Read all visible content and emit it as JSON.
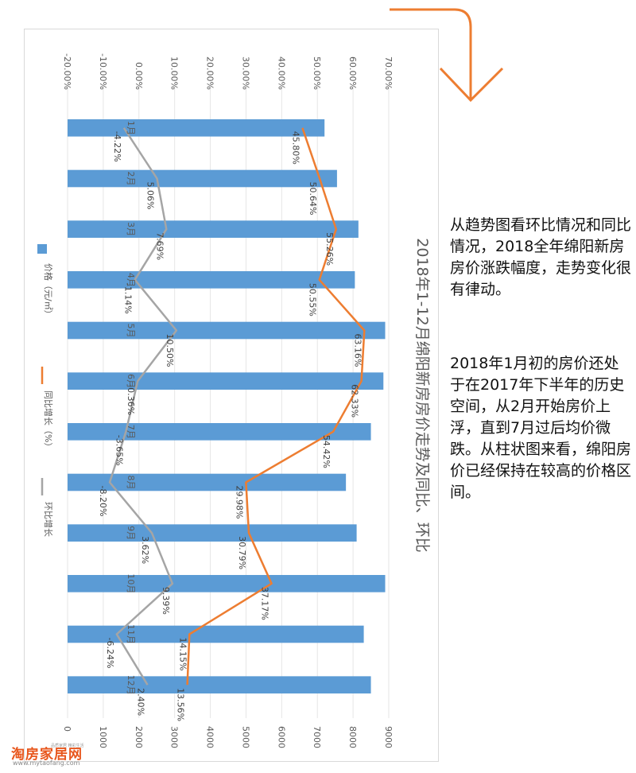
{
  "chart_data": {
    "type": "bar+line",
    "title": "2018年1-12月绵阳新房房价走势及同比、环比",
    "categories": [
      "1月",
      "2月",
      "3月",
      "4月",
      "5月",
      "6月",
      "7月",
      "8月",
      "9月",
      "10月",
      "11月",
      "12月"
    ],
    "price_axis": {
      "ticks": [
        "0",
        "1000",
        "2000",
        "3000",
        "4000",
        "5000",
        "6000",
        "7000",
        "8000",
        "9000"
      ],
      "range": [
        0,
        9000
      ]
    },
    "percent_axis": {
      "ticks": [
        "-20.00%",
        "-10.00%",
        "0.00%",
        "10.00%",
        "20.00%",
        "30.00%",
        "40.00%",
        "50.00%",
        "60.00%",
        "70.00%"
      ],
      "range": [
        -20,
        70
      ]
    },
    "series": [
      {
        "name": "价格（元/㎡）",
        "type": "bar",
        "color": "#5b9bd5",
        "values": [
          7200,
          7550,
          8150,
          8050,
          8900,
          8850,
          8500,
          7800,
          8100,
          8900,
          8300,
          8500
        ]
      },
      {
        "name": "同比增长（%）",
        "type": "line",
        "color": "#ed7d31",
        "values": [
          45.8,
          50.64,
          55.26,
          50.55,
          63.16,
          62.33,
          54.42,
          29.98,
          30.79,
          37.17,
          14.15,
          13.56
        ],
        "labels": [
          "45.80%",
          "50.64%",
          "55.26%",
          "50.55%",
          "63.16%",
          "62.33%",
          "54.42%",
          "29.98%",
          "30.79%",
          "37.17%",
          "14.15%",
          "13.56%"
        ]
      },
      {
        "name": "环比增长",
        "type": "line",
        "color": "#a5a5a5",
        "values": [
          -4.22,
          5.06,
          7.69,
          -1.14,
          10.5,
          -0.36,
          -3.65,
          -8.2,
          3.62,
          9.39,
          -6.24,
          2.4
        ],
        "labels": [
          "-4.22%",
          "5.06%",
          "7.69%",
          "-1.14%",
          "10.50%",
          "-0.36%",
          "-3.65%",
          "-8.20%",
          "3.62%",
          "9.39%",
          "-6.24%",
          "2.40%"
        ]
      }
    ],
    "legend_labels": [
      "价格（元/㎡）",
      "同比增长（%）",
      "环比增长"
    ]
  },
  "side_text": {
    "paragraph1": "从趋势图看环比情况和同比情况，2018全年绵阳新房房价涨跌幅度，走势变化很有律动。",
    "paragraph2": "2018年1月初的房价还处于在2017年下半年的历史空间，从2月开始房价上浮，直到7月过后均价微跌。从柱状图来看，绵阳房价已经保持在较高的价格区间。"
  },
  "logo": {
    "brand_part1": "淘房",
    "brand_part2": "家居网",
    "url": "www.mytaofang.com",
    "tiny_text": "品质家居 精彩生活"
  },
  "colors": {
    "arrow": "#ed7d31",
    "bar": "#5b9bd5",
    "yoy": "#ed7d31",
    "mom": "#a5a5a5"
  }
}
